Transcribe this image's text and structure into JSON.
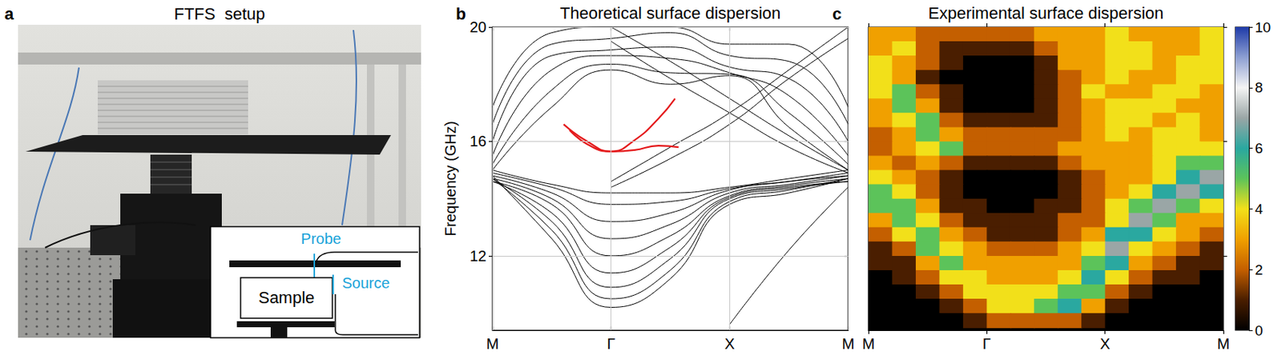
{
  "setup_panel": {
    "panel": "a",
    "title": "FTFS  setup",
    "probe_label": "Probe",
    "source_label": "Source",
    "sample_label": "Sample"
  },
  "chart_data": [
    {
      "panel": "b",
      "type": "line",
      "title": "Theoretical surface dispersion",
      "y_label": "Frequency (GHz)",
      "x": [
        0,
        0.5,
        1,
        1.5,
        2,
        2.5,
        3
      ],
      "xlim": [
        0,
        3
      ],
      "xticks": [
        {
          "value": 0,
          "label": "M"
        },
        {
          "value": 1,
          "label": "Γ"
        },
        {
          "value": 2,
          "label": "X"
        },
        {
          "value": 3,
          "label": "M"
        }
      ],
      "ylim": [
        9.4,
        20
      ],
      "yticks": [
        12,
        16,
        20
      ],
      "grid": true,
      "series": [
        {
          "color": "#000000",
          "line_style": "solid",
          "values": [
            14.8,
            12.6,
            10.2,
            11.2,
            13.8,
            14.2,
            14.7
          ]
        },
        {
          "color": "#000000",
          "line_style": "solid",
          "values": [
            14.7,
            12.9,
            10.5,
            11.5,
            13.9,
            14.3,
            14.7
          ]
        },
        {
          "color": "#000000",
          "line_style": "solid",
          "values": [
            14.7,
            13.2,
            10.9,
            11.9,
            14.0,
            14.35,
            14.6
          ]
        },
        {
          "color": "#000000",
          "line_style": "solid",
          "values": [
            14.6,
            13.5,
            11.4,
            12.3,
            14.05,
            14.4,
            14.6
          ]
        },
        {
          "color": "#000000",
          "line_style": "solid",
          "values": [
            14.6,
            13.8,
            12.0,
            12.7,
            14.1,
            14.45,
            14.7
          ]
        },
        {
          "color": "#000000",
          "line_style": "solid",
          "values": [
            14.7,
            14.0,
            12.6,
            13.1,
            14.2,
            14.5,
            14.8
          ]
        },
        {
          "color": "#000000",
          "line_style": "solid",
          "values": [
            14.8,
            14.2,
            13.2,
            13.5,
            14.3,
            14.6,
            14.8
          ]
        },
        {
          "color": "#000000",
          "line_style": "solid",
          "values": [
            14.9,
            14.4,
            13.8,
            13.9,
            14.35,
            14.6,
            14.9
          ]
        },
        {
          "color": "#000000",
          "line_style": "solid",
          "values": [
            15.0,
            14.5,
            14.2,
            14.2,
            14.4,
            14.7,
            15.0
          ]
        },
        {
          "color": "#000000",
          "line_style": "solid",
          "values": [
            null,
            null,
            null,
            null,
            9.6,
            12.2,
            14.4
          ]
        },
        {
          "color": "#000000",
          "line_style": "solid",
          "values": [
            15.0,
            17.2,
            18.5,
            18.0,
            18.3,
            16.5,
            15.0
          ]
        },
        {
          "color": "#000000",
          "line_style": "solid",
          "values": [
            15.2,
            17.8,
            18.7,
            18.4,
            18.35,
            17.0,
            15.2
          ]
        },
        {
          "color": "#000000",
          "line_style": "solid",
          "values": [
            15.5,
            18.5,
            19.0,
            18.9,
            18.4,
            17.6,
            15.5
          ]
        },
        {
          "color": "#000000",
          "line_style": "solid",
          "values": [
            16.0,
            19.0,
            19.2,
            19.3,
            18.6,
            18.2,
            16.0
          ]
        },
        {
          "color": "#000000",
          "line_style": "solid",
          "values": [
            16.6,
            19.4,
            19.6,
            19.8,
            19.0,
            18.8,
            16.6
          ]
        },
        {
          "color": "#000000",
          "line_style": "solid",
          "values": [
            17.2,
            19.8,
            20.0,
            20.0,
            19.4,
            19.4,
            17.2
          ]
        },
        {
          "color": "#000000",
          "line_style": "solid",
          "values": [
            null,
            null,
            20.0,
            18.8,
            17.5,
            16.2,
            15.0
          ]
        },
        {
          "color": "#000000",
          "line_style": "solid",
          "values": [
            null,
            null,
            19.5,
            18.2,
            17.0,
            15.8,
            14.9
          ]
        },
        {
          "color": "#000000",
          "line_style": "solid",
          "values": [
            null,
            null,
            14.6,
            15.8,
            17.0,
            18.5,
            20.0
          ]
        },
        {
          "color": "#000000",
          "line_style": "solid",
          "values": [
            null,
            null,
            14.4,
            15.4,
            16.6,
            18.2,
            19.6
          ]
        },
        {
          "color": "#e41a1c",
          "line_style": "thick",
          "x": [
            0.6,
            0.8,
            1.0,
            1.2,
            1.4,
            1.54
          ],
          "values": [
            16.6,
            16.0,
            15.65,
            16.05,
            16.8,
            17.5
          ]
        },
        {
          "color": "#e41a1c",
          "line_style": "thick",
          "x": [
            0.65,
            0.8,
            1.0,
            1.2,
            1.4,
            1.57
          ],
          "values": [
            16.4,
            15.9,
            15.65,
            15.7,
            15.85,
            15.8
          ]
        }
      ]
    },
    {
      "panel": "c",
      "type": "heatmap",
      "title": "Experimental surface dispersion",
      "x": [
        0.1,
        0.3,
        0.5,
        0.7,
        0.9,
        1.1,
        1.3,
        1.5,
        1.7,
        1.9,
        2.1,
        2.3,
        2.5,
        2.7,
        2.9
      ],
      "y": [
        19.75,
        19.25,
        18.75,
        18.25,
        17.75,
        17.25,
        16.75,
        16.25,
        15.75,
        15.25,
        14.75,
        14.25,
        13.75,
        13.25,
        12.75,
        12.25,
        11.75,
        11.25,
        10.75,
        10.25,
        9.75
      ],
      "z": [
        [
          3,
          3,
          2,
          2,
          2,
          2,
          2,
          3,
          3,
          3,
          4,
          3,
          3,
          3,
          4
        ],
        [
          3,
          4,
          2,
          1,
          1,
          1,
          1,
          2,
          3,
          3,
          4,
          4,
          3,
          3,
          4
        ],
        [
          4,
          3,
          2,
          1,
          0,
          0,
          0,
          1,
          3,
          3,
          4,
          4,
          3,
          4,
          4
        ],
        [
          4,
          3,
          1,
          0,
          0,
          0,
          0,
          1,
          2,
          3,
          4,
          3,
          3,
          4,
          4
        ],
        [
          4,
          5,
          2,
          1,
          0,
          0,
          0,
          1,
          2,
          4,
          3,
          3,
          4,
          4,
          3
        ],
        [
          3,
          5,
          3,
          1,
          0,
          0,
          0,
          1,
          2,
          3,
          4,
          4,
          4,
          3,
          3
        ],
        [
          3,
          4,
          5,
          2,
          1,
          1,
          1,
          1,
          2,
          3,
          4,
          4,
          3,
          4,
          3
        ],
        [
          2,
          3,
          5,
          3,
          2,
          2,
          2,
          2,
          2,
          3,
          4,
          3,
          4,
          4,
          3
        ],
        [
          2,
          3,
          4,
          5,
          2,
          2,
          2,
          2,
          3,
          3,
          3,
          3,
          4,
          4,
          4
        ],
        [
          3,
          2,
          3,
          2,
          1,
          1,
          1,
          1,
          2,
          3,
          3,
          3,
          4,
          5,
          5
        ],
        [
          4,
          3,
          2,
          1,
          0,
          0,
          0,
          0,
          1,
          2,
          3,
          3,
          4,
          6,
          7
        ],
        [
          5,
          4,
          2,
          1,
          0,
          0,
          0,
          0,
          1,
          2,
          3,
          4,
          6,
          7,
          6
        ],
        [
          5,
          5,
          3,
          1,
          1,
          0,
          0,
          1,
          1,
          2,
          4,
          5,
          7,
          5,
          4
        ],
        [
          3,
          5,
          4,
          2,
          1,
          1,
          1,
          1,
          2,
          2,
          4,
          7,
          5,
          3,
          3
        ],
        [
          2,
          4,
          5,
          3,
          2,
          1,
          1,
          1,
          2,
          3,
          6,
          6,
          4,
          3,
          2
        ],
        [
          1,
          2,
          5,
          4,
          3,
          2,
          2,
          2,
          3,
          4,
          7,
          4,
          3,
          2,
          1
        ],
        [
          1,
          1,
          3,
          5,
          3,
          3,
          3,
          3,
          3,
          5,
          6,
          3,
          2,
          1,
          1
        ],
        [
          0,
          1,
          2,
          4,
          4,
          3,
          3,
          3,
          4,
          6,
          4,
          2,
          1,
          1,
          0
        ],
        [
          0,
          0,
          1,
          2,
          4,
          4,
          4,
          4,
          5,
          5,
          2,
          1,
          0,
          0,
          0
        ],
        [
          0,
          0,
          0,
          1,
          2,
          4,
          4,
          5,
          6,
          3,
          1,
          0,
          0,
          0,
          0
        ],
        [
          0,
          0,
          0,
          0,
          1,
          2,
          2,
          2,
          2,
          1,
          0,
          0,
          0,
          0,
          0
        ]
      ],
      "xlim": [
        0,
        3
      ],
      "xticks": [
        {
          "value": 0,
          "label": "M"
        },
        {
          "value": 1,
          "label": "Γ"
        },
        {
          "value": 2,
          "label": "X"
        },
        {
          "value": 3,
          "label": "M"
        }
      ],
      "ylim": [
        9.4,
        20
      ],
      "yticks": [
        12,
        16,
        20
      ],
      "grid": false,
      "tick_labels": "x",
      "colorbar": {
        "range": [
          0,
          10
        ],
        "ticks": [
          0,
          2,
          4,
          6,
          8,
          10
        ]
      }
    }
  ]
}
